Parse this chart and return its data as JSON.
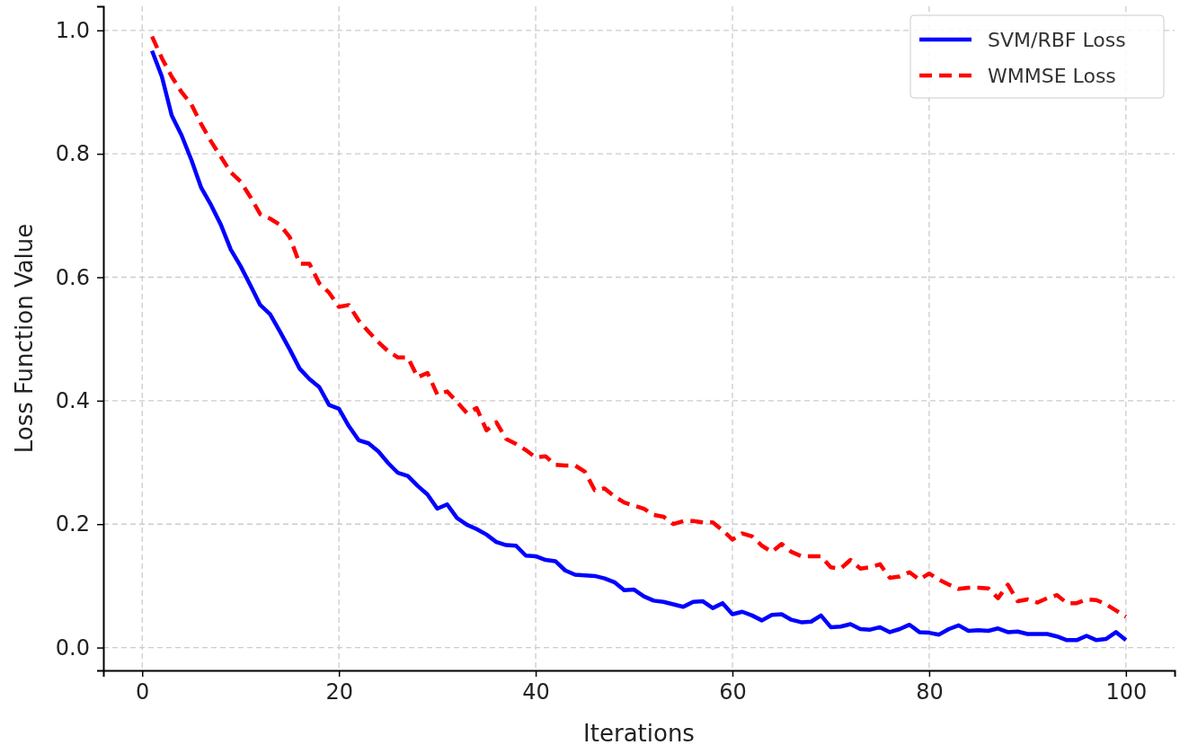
{
  "chart_data": {
    "type": "line",
    "xlabel": "Iterations",
    "ylabel": "Loss Function Value",
    "x": [
      1,
      2,
      3,
      4,
      5,
      6,
      7,
      8,
      9,
      10,
      11,
      12,
      13,
      14,
      15,
      16,
      17,
      18,
      19,
      20,
      21,
      22,
      23,
      24,
      25,
      26,
      27,
      28,
      29,
      30,
      31,
      32,
      33,
      34,
      35,
      36,
      37,
      38,
      39,
      40,
      41,
      42,
      43,
      44,
      45,
      46,
      47,
      48,
      49,
      50,
      51,
      52,
      53,
      54,
      55,
      56,
      57,
      58,
      59,
      60,
      61,
      62,
      63,
      64,
      65,
      66,
      67,
      68,
      69,
      70,
      71,
      72,
      73,
      74,
      75,
      76,
      77,
      78,
      79,
      80,
      81,
      82,
      83,
      84,
      85,
      86,
      87,
      88,
      89,
      90,
      91,
      92,
      93,
      94,
      95,
      96,
      97,
      98,
      99,
      100
    ],
    "series": [
      {
        "name": "SVM/RBF Loss",
        "color": "#0000ff",
        "line_style": "solid",
        "values": [
          0.967,
          0.925,
          0.862,
          0.83,
          0.79,
          0.745,
          0.717,
          0.685,
          0.645,
          0.618,
          0.587,
          0.555,
          0.54,
          0.512,
          0.483,
          0.452,
          0.435,
          0.422,
          0.393,
          0.387,
          0.359,
          0.336,
          0.331,
          0.318,
          0.299,
          0.283,
          0.278,
          0.262,
          0.248,
          0.225,
          0.232,
          0.21,
          0.199,
          0.192,
          0.183,
          0.171,
          0.166,
          0.165,
          0.149,
          0.148,
          0.142,
          0.14,
          0.125,
          0.118,
          0.117,
          0.116,
          0.112,
          0.106,
          0.093,
          0.094,
          0.083,
          0.076,
          0.074,
          0.07,
          0.066,
          0.074,
          0.075,
          0.064,
          0.072,
          0.054,
          0.058,
          0.052,
          0.044,
          0.053,
          0.054,
          0.045,
          0.041,
          0.042,
          0.052,
          0.033,
          0.034,
          0.038,
          0.03,
          0.029,
          0.033,
          0.025,
          0.03,
          0.037,
          0.025,
          0.024,
          0.021,
          0.03,
          0.036,
          0.027,
          0.028,
          0.027,
          0.031,
          0.025,
          0.026,
          0.022,
          0.022,
          0.022,
          0.018,
          0.012,
          0.012,
          0.019,
          0.012,
          0.014,
          0.025,
          0.012
        ]
      },
      {
        "name": "WMMSE Loss",
        "color": "#ff0000",
        "line_style": "dashed",
        "values": [
          0.99,
          0.955,
          0.925,
          0.9,
          0.88,
          0.848,
          0.82,
          0.795,
          0.77,
          0.755,
          0.73,
          0.702,
          0.695,
          0.685,
          0.665,
          0.622,
          0.622,
          0.59,
          0.575,
          0.552,
          0.555,
          0.53,
          0.512,
          0.495,
          0.48,
          0.47,
          0.47,
          0.438,
          0.445,
          0.41,
          0.415,
          0.398,
          0.38,
          0.388,
          0.352,
          0.365,
          0.338,
          0.33,
          0.32,
          0.308,
          0.31,
          0.296,
          0.295,
          0.295,
          0.285,
          0.255,
          0.258,
          0.245,
          0.235,
          0.23,
          0.225,
          0.215,
          0.212,
          0.2,
          0.205,
          0.205,
          0.203,
          0.203,
          0.19,
          0.175,
          0.185,
          0.18,
          0.165,
          0.155,
          0.168,
          0.155,
          0.148,
          0.148,
          0.148,
          0.13,
          0.128,
          0.142,
          0.128,
          0.13,
          0.135,
          0.113,
          0.115,
          0.122,
          0.11,
          0.12,
          0.11,
          0.102,
          0.095,
          0.097,
          0.097,
          0.096,
          0.08,
          0.102,
          0.075,
          0.078,
          0.073,
          0.08,
          0.085,
          0.072,
          0.072,
          0.078,
          0.077,
          0.07,
          0.06,
          0.05
        ]
      }
    ],
    "xlim": [
      -3.95,
      104.95
    ],
    "ylim": [
      -0.037,
      1.039
    ],
    "xticks": [
      0,
      20,
      40,
      60,
      80,
      100
    ],
    "yticks": [
      {
        "value": 0,
        "label": "0.0"
      },
      {
        "value": 0.2,
        "label": "0.2"
      },
      {
        "value": 0.4,
        "label": "0.4"
      },
      {
        "value": 0.6,
        "label": "0.6"
      },
      {
        "value": 0.8,
        "label": "0.8"
      },
      {
        "value": 1,
        "label": "1.0"
      }
    ],
    "grid": true,
    "legend": "top right"
  }
}
